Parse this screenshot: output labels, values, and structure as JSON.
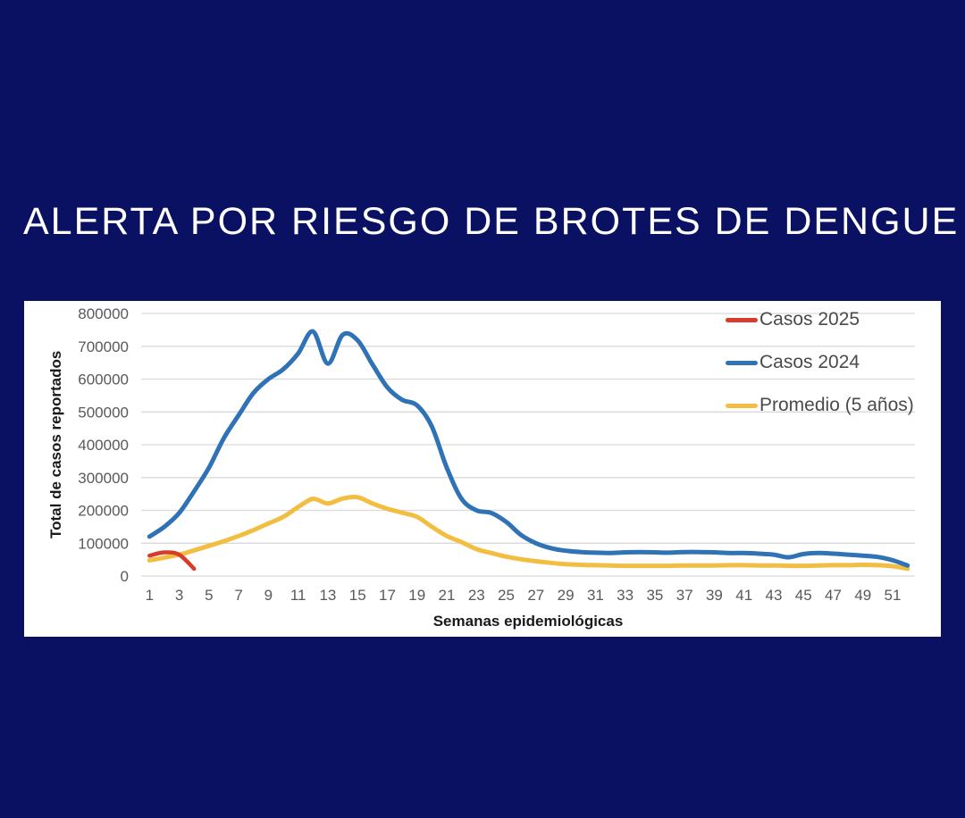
{
  "page": {
    "background_color": "#0A1163",
    "title": "ALERTA POR RIESGO DE BROTES DE DENGUE",
    "title_color": "#FFFFFF"
  },
  "panel": {
    "background_color": "#FFFFFF"
  },
  "chart_data": {
    "type": "line",
    "title": "",
    "xlabel": "Semanas epidemiológicas",
    "ylabel": "Total de casos reportados",
    "x": [
      1,
      2,
      3,
      4,
      5,
      6,
      7,
      8,
      9,
      10,
      11,
      12,
      13,
      14,
      15,
      16,
      17,
      18,
      19,
      20,
      21,
      22,
      23,
      24,
      25,
      26,
      27,
      28,
      29,
      30,
      31,
      32,
      33,
      34,
      35,
      36,
      37,
      38,
      39,
      40,
      41,
      42,
      43,
      44,
      45,
      46,
      47,
      48,
      49,
      50,
      51,
      52
    ],
    "x_tick_labels": [
      "1",
      "3",
      "5",
      "7",
      "9",
      "11",
      "13",
      "15",
      "17",
      "19",
      "21",
      "23",
      "25",
      "27",
      "29",
      "31",
      "33",
      "35",
      "37",
      "39",
      "41",
      "43",
      "45",
      "47",
      "49",
      "51"
    ],
    "ylim": [
      0,
      800000
    ],
    "y_ticks": [
      0,
      100000,
      200000,
      300000,
      400000,
      500000,
      600000,
      700000,
      800000
    ],
    "grid": true,
    "gridline_color": "#D9D9D9",
    "tick_label_color": "#595959",
    "legend_position": "top-right",
    "series": [
      {
        "name": "Casos 2025",
        "color": "#D83A2B",
        "values": [
          62000,
          72000,
          65000,
          22000
        ]
      },
      {
        "name": "Casos 2024",
        "color": "#2F72B6",
        "values": [
          120000,
          150000,
          192000,
          258000,
          330000,
          420000,
          490000,
          558000,
          600000,
          630000,
          678000,
          745000,
          647000,
          735000,
          718000,
          645000,
          575000,
          537000,
          520000,
          455000,
          330000,
          235000,
          200000,
          192000,
          165000,
          125000,
          100000,
          85000,
          77000,
          73000,
          71000,
          70000,
          72000,
          73000,
          72000,
          71000,
          73000,
          73000,
          72000,
          70000,
          70000,
          68000,
          65000,
          57000,
          67000,
          70000,
          68000,
          65000,
          62000,
          58000,
          48000,
          32000
        ]
      },
      {
        "name": "Promedio (5 años)",
        "color": "#F2BE41",
        "values": [
          48000,
          56000,
          65000,
          78000,
          92000,
          106000,
          122000,
          140000,
          160000,
          180000,
          210000,
          235000,
          221000,
          236000,
          240000,
          221000,
          205000,
          193000,
          180000,
          150000,
          122000,
          103000,
          82000,
          70000,
          59000,
          51000,
          45000,
          40000,
          36000,
          34000,
          33000,
          32000,
          31000,
          31000,
          31000,
          31000,
          32000,
          32000,
          32000,
          33000,
          33000,
          32000,
          32000,
          31000,
          31000,
          32000,
          33000,
          33000,
          34000,
          33000,
          30000,
          22000
        ]
      }
    ]
  }
}
